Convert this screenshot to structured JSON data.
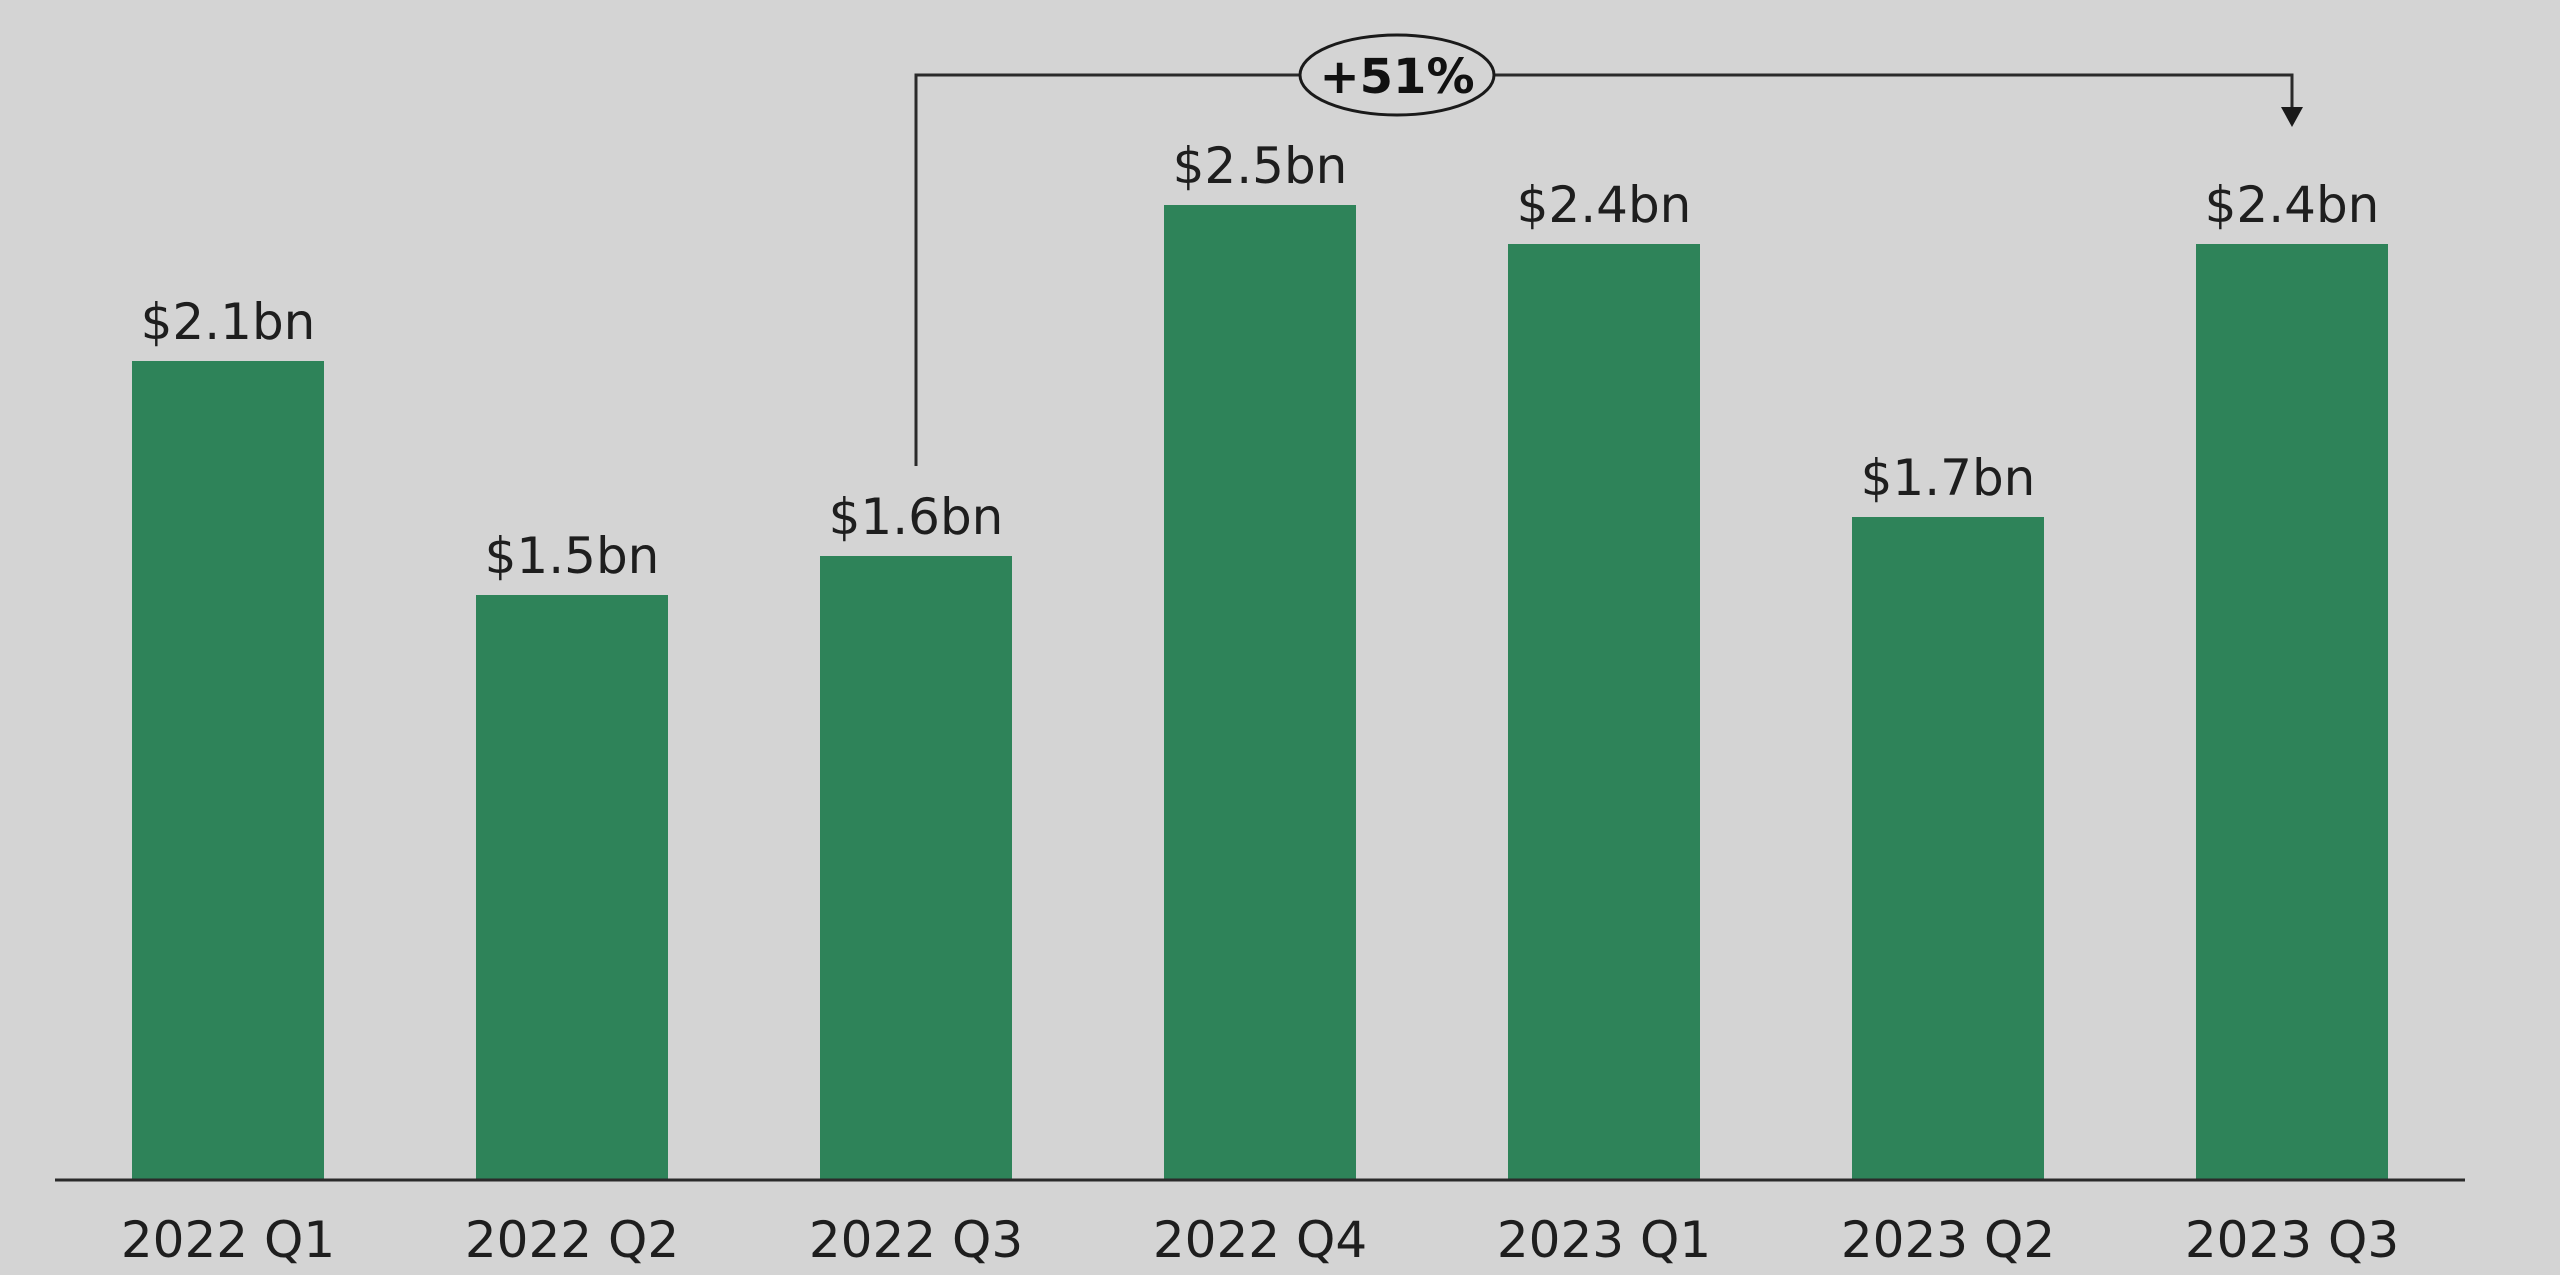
{
  "chart_data": {
    "type": "bar",
    "title": "",
    "xlabel": "",
    "ylabel": "",
    "categories": [
      "2022 Q1",
      "2022 Q2",
      "2022 Q3",
      "2022 Q4",
      "2023 Q1",
      "2023 Q2",
      "2023 Q3"
    ],
    "values": [
      2.1,
      1.5,
      1.6,
      2.5,
      2.4,
      1.7,
      2.4
    ],
    "data_labels": [
      "$2.1bn",
      "$1.5bn",
      "$1.6bn",
      "$2.5bn",
      "$2.4bn",
      "$1.7bn",
      "$2.4bn"
    ],
    "ylim": [
      0,
      2.5
    ],
    "grid": false,
    "legend": "none",
    "bar_color": "#2e8359",
    "axis_color": "#2a2a2a",
    "annotation": {
      "text": "+51%",
      "from_category": "2022 Q3",
      "to_category": "2023 Q3"
    }
  }
}
